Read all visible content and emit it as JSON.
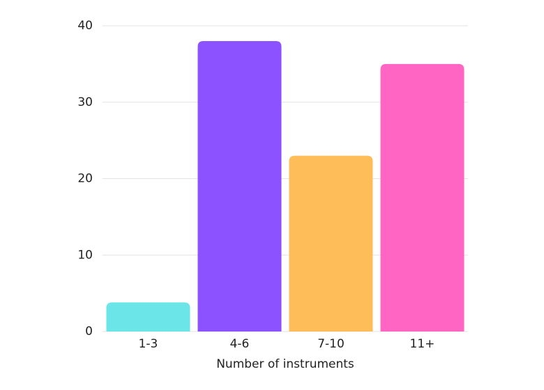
{
  "chart_data": {
    "type": "bar",
    "x_label": "Number of instruments",
    "categories": [
      "1-3",
      "4-6",
      "7-10",
      "11+"
    ],
    "values": [
      3.8,
      38,
      23,
      35
    ],
    "colors": [
      "#6ce5e8",
      "#8c52ff",
      "#ffbd59",
      "#ff66c4"
    ],
    "ylim": [
      0,
      40
    ],
    "yticks": [
      0,
      10,
      20,
      30,
      40
    ],
    "grid": true
  }
}
